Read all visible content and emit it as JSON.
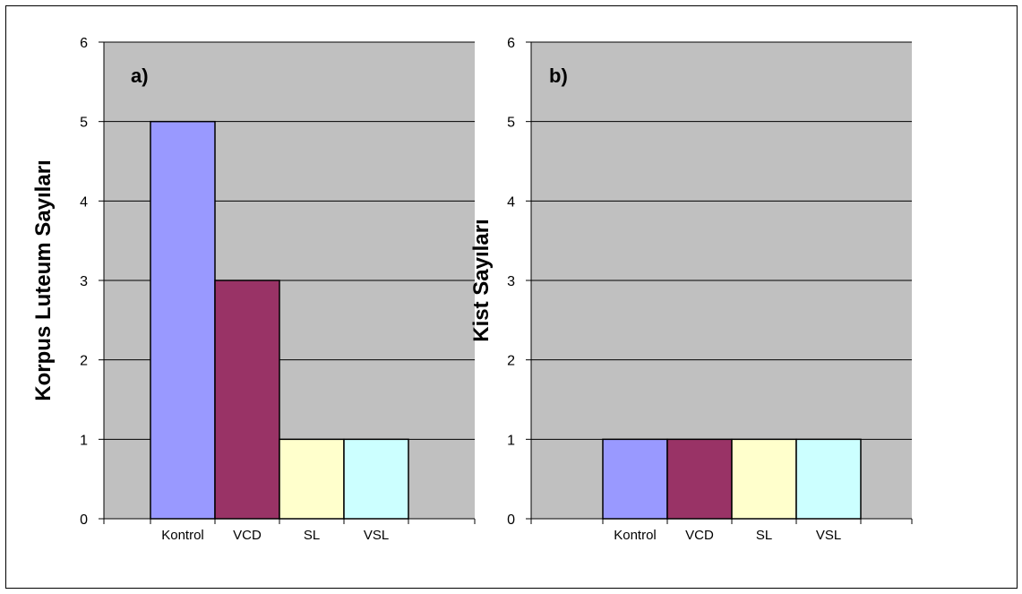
{
  "chart_data": [
    {
      "type": "bar",
      "panel_label": "a)",
      "ylabel": "Korpus Luteum Sayıları",
      "categories": [
        "Kontrol",
        "VCD",
        "SL",
        "VSL"
      ],
      "values": [
        5,
        3,
        1,
        1
      ],
      "colors": [
        "#9999ff",
        "#993366",
        "#ffffcc",
        "#ccffff"
      ],
      "ylim": [
        0,
        6
      ],
      "yticks": [
        0,
        1,
        2,
        3,
        4,
        5,
        6
      ],
      "grid": true,
      "plot_background": "#c0c0c0"
    },
    {
      "type": "bar",
      "panel_label": "b)",
      "ylabel": "Kist Sayıları",
      "categories": [
        "Kontrol",
        "VCD",
        "SL",
        "VSL"
      ],
      "values": [
        1,
        1,
        1,
        1
      ],
      "colors": [
        "#9999ff",
        "#993366",
        "#ffffcc",
        "#ccffff"
      ],
      "ylim": [
        0,
        6
      ],
      "yticks": [
        0,
        1,
        2,
        3,
        4,
        5,
        6
      ],
      "grid": true,
      "plot_background": "#c0c0c0"
    }
  ]
}
